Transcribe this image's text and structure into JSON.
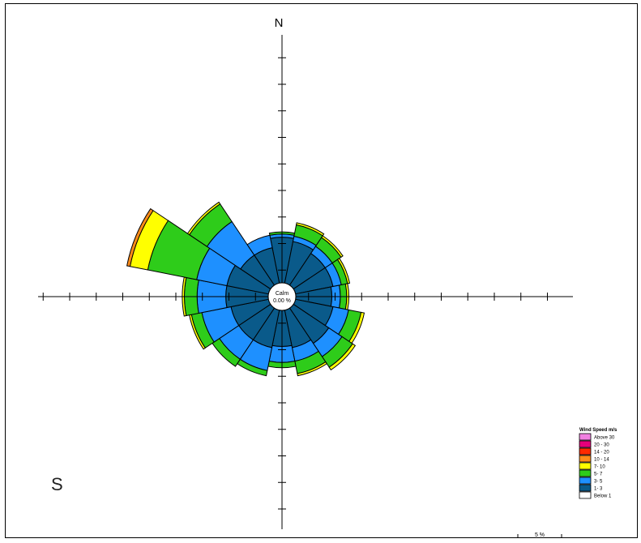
{
  "chart_data": {
    "type": "windrose",
    "north_label": "N",
    "corner_label": "S",
    "calm": {
      "label": "Calm",
      "value": "0.00 %"
    },
    "radial_unit": "%",
    "scale_label": "5 %",
    "directions_deg": [
      0,
      22.5,
      45,
      67.5,
      90,
      112.5,
      135,
      157.5,
      180,
      202.5,
      225,
      247.5,
      270,
      292.5,
      315,
      337.5
    ],
    "bins": [
      {
        "name": "Below 1",
        "color": "#ffffff"
      },
      {
        "name": "1- 3",
        "color": "#0a5a8a"
      },
      {
        "name": "3- 5",
        "color": "#1e90ff"
      },
      {
        "name": "5- 7",
        "color": "#2ecc1a"
      },
      {
        "name": "7- 10",
        "color": "#ffff00"
      },
      {
        "name": "10 - 14",
        "color": "#ff8c1a"
      },
      {
        "name": "14 - 20",
        "color": "#ff2a00"
      },
      {
        "name": "20 - 30",
        "color": "#e6007a"
      },
      {
        "name": "Above 30",
        "color": "#f080e0"
      }
    ],
    "frequencies_pct": [
      [
        0,
        4.3,
        0.3,
        0.2,
        0.0,
        0,
        0,
        0,
        0
      ],
      [
        0,
        4.0,
        0.5,
        1.1,
        0.2,
        0,
        0,
        0,
        0
      ],
      [
        0,
        3.6,
        0.8,
        1.0,
        0.2,
        0,
        0,
        0,
        0
      ],
      [
        0,
        3.6,
        0.8,
        0.6,
        0.2,
        0,
        0,
        0,
        0
      ],
      [
        0,
        3.4,
        0.8,
        0.6,
        0.2,
        0,
        0,
        0,
        0
      ],
      [
        0,
        3.6,
        1.5,
        1.2,
        0.3,
        0,
        0,
        0,
        0
      ],
      [
        0,
        4.0,
        1.5,
        1.2,
        0.3,
        0,
        0,
        0,
        0
      ],
      [
        0,
        3.6,
        1.3,
        1.2,
        0.2,
        0,
        0,
        0,
        0
      ],
      [
        0,
        3.4,
        1.5,
        0.5,
        0.0,
        0,
        0,
        0,
        0
      ],
      [
        0,
        3.6,
        2.2,
        0.5,
        0.0,
        0,
        0,
        0,
        0
      ],
      [
        0,
        3.6,
        2.2,
        0.8,
        0.0,
        0,
        0,
        0,
        0
      ],
      [
        0,
        3.6,
        2.8,
        1.0,
        0.2,
        0,
        0,
        0,
        0
      ],
      [
        0,
        4.0,
        2.7,
        1.2,
        0.2,
        0,
        0,
        0,
        0
      ],
      [
        0,
        4.0,
        2.9,
        4.7,
        1.7,
        0.3,
        0.0,
        0,
        0
      ],
      [
        0,
        3.4,
        3.8,
        2.0,
        0.2,
        0,
        0,
        0,
        0
      ],
      [
        0,
        3.4,
        1.2,
        0.0,
        0.0,
        0,
        0,
        0,
        0
      ]
    ],
    "legend": {
      "title": "Wind Speed m/s",
      "entries": [
        "Above 30",
        "20 - 30",
        "14 - 20",
        "10 - 14",
        "7- 10",
        "5- 7",
        "3- 5",
        "1- 3",
        "Below 1"
      ]
    },
    "axis_tick_interval_pct": 2.5
  }
}
